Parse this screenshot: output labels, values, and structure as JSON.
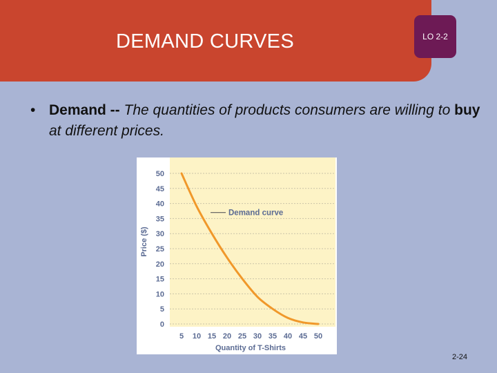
{
  "slide": {
    "title": "DEMAND CURVES",
    "lo_badge": "LO 2-2",
    "bullet": {
      "marker": "•",
      "term": "Demand --",
      "definition_before": "The quantities of products consumers are willing to",
      "emphasis": "buy",
      "definition_after": "at different prices."
    },
    "slide_number": "2-24"
  },
  "colors": {
    "title_banner": "#c9452e",
    "lo_badge": "#6d1a55",
    "background": "#a9b4d4",
    "plot_area": "#fdf3c6",
    "curve": "#f0982a",
    "axis_text": "#5b6b93"
  },
  "chart_data": {
    "type": "line",
    "xlabel": "Quantity of T-Shirts",
    "ylabel": "Price ($)",
    "x_ticks": [
      5,
      10,
      15,
      20,
      25,
      30,
      35,
      40,
      45,
      50
    ],
    "y_ticks": [
      0,
      5,
      10,
      15,
      20,
      25,
      30,
      35,
      40,
      45,
      50
    ],
    "xlim": [
      5,
      50
    ],
    "ylim": [
      0,
      50
    ],
    "grid": "horizontal dotted",
    "series": [
      {
        "name": "Demand curve",
        "x": [
          5,
          10,
          15,
          20,
          25,
          30,
          35,
          40,
          45,
          50
        ],
        "y": [
          50,
          39,
          30,
          22,
          15,
          9,
          5,
          2,
          0.5,
          0
        ]
      }
    ],
    "annotation": {
      "text": "Demand curve",
      "x": 15,
      "y": 37
    }
  }
}
